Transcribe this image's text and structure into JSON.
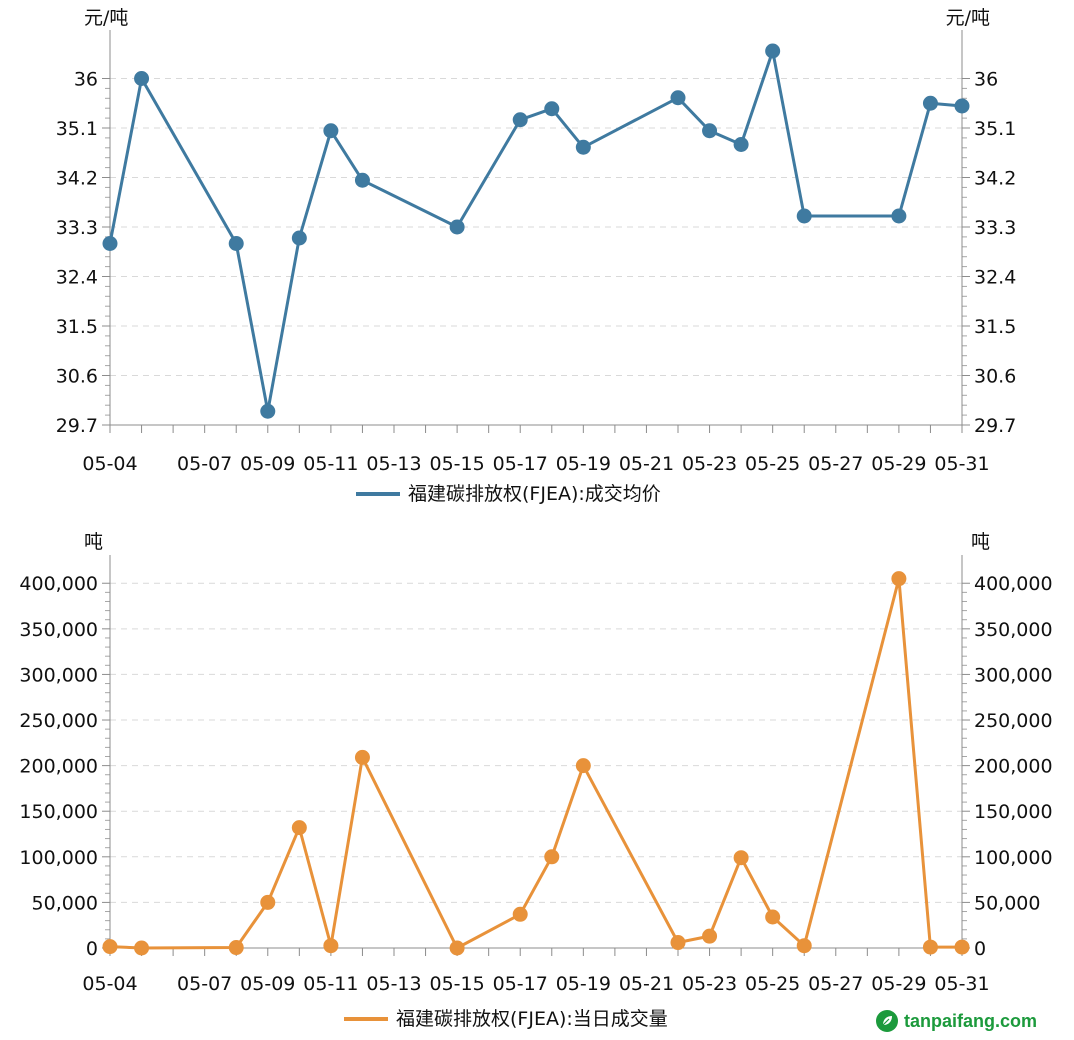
{
  "chart_data": [
    {
      "type": "line",
      "ylabel": "元/吨",
      "ylabel_right": "元/吨",
      "ylim": [
        29.7,
        36.7
      ],
      "yticks": [
        "29.7",
        "30.6",
        "31.5",
        "32.4",
        "33.3",
        "34.2",
        "35.1",
        "36"
      ],
      "xlim": [
        "05-04",
        "05-31"
      ],
      "xticks": [
        "05-04",
        "05-07",
        "05-09",
        "05-11",
        "05-13",
        "05-15",
        "05-17",
        "05-19",
        "05-21",
        "05-23",
        "05-25",
        "05-27",
        "05-29",
        "05-31"
      ],
      "grid": true,
      "legend_position": "bottom",
      "color": "#3f7aa0",
      "series": [
        {
          "name": "福建碳排放权(FJEA):成交均价",
          "x": [
            "05-04",
            "05-05",
            "05-08",
            "05-09",
            "05-10",
            "05-11",
            "05-12",
            "05-15",
            "05-17",
            "05-18",
            "05-19",
            "05-22",
            "05-23",
            "05-24",
            "05-25",
            "05-26",
            "05-29",
            "05-30",
            "05-31"
          ],
          "values": [
            33.0,
            36.0,
            33.0,
            29.95,
            33.1,
            35.05,
            34.15,
            33.3,
            35.25,
            35.45,
            34.75,
            35.65,
            35.05,
            34.8,
            36.5,
            33.5,
            33.5,
            35.55,
            35.5
          ]
        }
      ]
    },
    {
      "type": "line",
      "ylabel": "吨",
      "ylabel_right": "吨",
      "ylim": [
        0,
        420000
      ],
      "yticks": [
        "0",
        "50,000",
        "100,000",
        "150,000",
        "200,000",
        "250,000",
        "300,000",
        "350,000",
        "400,000"
      ],
      "xlim": [
        "05-04",
        "05-31"
      ],
      "xticks": [
        "05-04",
        "05-07",
        "05-09",
        "05-11",
        "05-13",
        "05-15",
        "05-17",
        "05-19",
        "05-21",
        "05-23",
        "05-25",
        "05-27",
        "05-29",
        "05-31"
      ],
      "grid": true,
      "legend_position": "bottom",
      "color": "#e8923a",
      "series": [
        {
          "name": "福建碳排放权(FJEA):当日成交量",
          "x": [
            "05-04",
            "05-05",
            "05-08",
            "05-09",
            "05-10",
            "05-11",
            "05-12",
            "05-15",
            "05-17",
            "05-18",
            "05-19",
            "05-22",
            "05-23",
            "05-24",
            "05-25",
            "05-26",
            "05-29",
            "05-30",
            "05-31"
          ],
          "values": [
            1500,
            0,
            500,
            50000,
            132000,
            2500,
            209000,
            0,
            37000,
            100000,
            200000,
            6000,
            13000,
            99000,
            34000,
            2500,
            405000,
            1000,
            1000
          ]
        }
      ]
    }
  ],
  "watermark": {
    "text": "tanpaifang.com"
  }
}
